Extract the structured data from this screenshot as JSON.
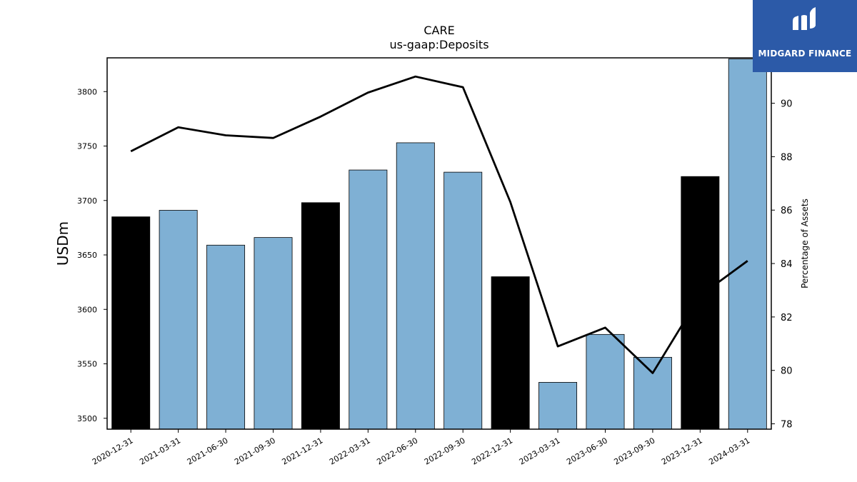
{
  "chart_data": {
    "type": "bar",
    "title": "CARE",
    "subtitle": "us-gaap:Deposits",
    "ylabel": "USDm",
    "ylabel_right": "Percentage of Assets",
    "categories": [
      "2020-12-31",
      "2021-03-31",
      "2021-06-30",
      "2021-09-30",
      "2021-12-31",
      "2022-03-31",
      "2022-06-30",
      "2022-09-30",
      "2022-12-31",
      "2023-03-31",
      "2023-06-30",
      "2023-09-30",
      "2023-12-31",
      "2024-03-31"
    ],
    "series": [
      {
        "values": [
          3685,
          3691,
          3659,
          3666,
          3698,
          3728,
          3753,
          3726,
          3630,
          3533,
          3577,
          3556,
          3722,
          3830
        ],
        "axis": "left",
        "kind": "bar"
      },
      {
        "values": [
          88.2,
          89.1,
          88.8,
          88.7,
          89.5,
          90.4,
          91.0,
          90.6,
          86.3,
          80.9,
          81.6,
          79.9,
          82.8,
          84.1
        ],
        "axis": "right",
        "kind": "line",
        "color": "#000000"
      }
    ],
    "bar_colors": [
      "#000000",
      "#7fb0d4",
      "#7fb0d4",
      "#7fb0d4",
      "#000000",
      "#7fb0d4",
      "#7fb0d4",
      "#7fb0d4",
      "#000000",
      "#7fb0d4",
      "#7fb0d4",
      "#7fb0d4",
      "#000000",
      "#7fb0d4"
    ],
    "ylim": [
      3490,
      3831
    ],
    "yticks": [
      3500,
      3550,
      3600,
      3650,
      3700,
      3750,
      3800
    ],
    "ylim_right": [
      77.8,
      91.7
    ],
    "yticks_right": [
      78,
      80,
      82,
      84,
      86,
      88,
      90
    ],
    "grid": false
  },
  "logo": {
    "text": "MIDGARD FINANCE"
  }
}
